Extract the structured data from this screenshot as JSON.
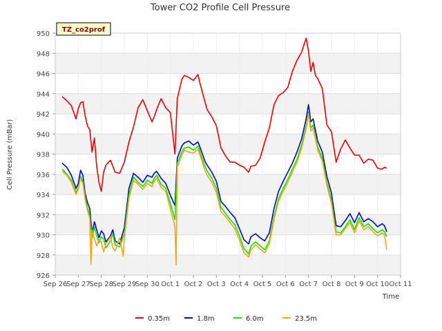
{
  "chart_data": {
    "type": "line",
    "title": "Tower CO2 Profile Cell Pressure",
    "xlabel": "Time",
    "ylabel": "Cell Pressure (mBar)",
    "badge": "TZ_co2prof",
    "ylim": [
      926,
      950
    ],
    "yticks": [
      926,
      928,
      930,
      932,
      934,
      936,
      938,
      940,
      942,
      944,
      946,
      948,
      950
    ],
    "xlim": [
      0,
      15
    ],
    "xticks": [
      "Sep 26",
      "Sep 27",
      "Sep 28",
      "Sep 29",
      "Sep 30",
      "Oct 1",
      "Oct 2",
      "Oct 3",
      "Oct 4",
      "Oct 5",
      "Oct 6",
      "Oct 7",
      "Oct 8",
      "Oct 9",
      "Oct 10",
      "Oct 11"
    ],
    "grid": true,
    "legend_position": "bottom",
    "series": [
      {
        "name": "0.35m",
        "color": "#ee0000",
        "x": [
          0.3,
          0.5,
          0.7,
          0.9,
          1.0,
          1.1,
          1.2,
          1.3,
          1.4,
          1.5,
          1.6,
          1.7,
          1.8,
          1.9,
          2.0,
          2.1,
          2.2,
          2.4,
          2.5,
          2.6,
          2.8,
          3.0,
          3.2,
          3.4,
          3.6,
          3.8,
          4.0,
          4.2,
          4.3,
          4.4,
          4.6,
          4.8,
          5.0,
          5.2,
          5.3,
          5.5,
          5.6,
          5.8,
          6.0,
          6.2,
          6.3,
          6.5,
          6.6,
          6.8,
          7.0,
          7.2,
          7.4,
          7.6,
          7.8,
          8.0,
          8.2,
          8.4,
          8.5,
          8.7,
          8.9,
          9.1,
          9.3,
          9.5,
          9.7,
          9.9,
          10.1,
          10.3,
          10.5,
          10.7,
          10.9,
          11.0,
          11.1,
          11.2,
          11.3,
          11.4,
          11.6,
          11.8,
          12.0,
          12.2,
          12.4,
          12.6,
          12.8,
          13.0,
          13.2,
          13.4,
          13.6,
          13.8,
          14.0,
          14.2,
          14.3,
          14.4
        ],
        "y": [
          943.7,
          943.3,
          942.8,
          941.5,
          942.5,
          943.1,
          943.2,
          941.8,
          940.8,
          940.4,
          938.2,
          939.6,
          936.8,
          935.2,
          934.3,
          936.2,
          936.9,
          937.4,
          936.8,
          936.2,
          936.1,
          937.2,
          939.2,
          940.7,
          942.6,
          943.4,
          942.3,
          941.2,
          941.7,
          942.4,
          943.5,
          942.6,
          942.1,
          938.0,
          943.5,
          945.4,
          945.8,
          945.6,
          945.3,
          945.9,
          944.9,
          943.2,
          942.4,
          941.7,
          940.8,
          938.6,
          937.8,
          937.2,
          937.2,
          936.9,
          936.7,
          936.2,
          936.8,
          936.9,
          937.6,
          939.2,
          940.6,
          942.9,
          943.8,
          944.1,
          944.6,
          946.2,
          947.3,
          948.1,
          949.5,
          948.2,
          946.2,
          947.1,
          945.8,
          945.5,
          944.5,
          940.9,
          940.2,
          937.2,
          938.5,
          939.4,
          938.6,
          937.9,
          937.9,
          937.1,
          937.5,
          937.4,
          936.6,
          936.5,
          936.7,
          936.6
        ]
      },
      {
        "name": "1.8m",
        "color": "#0000dd",
        "x": [
          0.3,
          0.5,
          0.7,
          0.9,
          1.0,
          1.1,
          1.2,
          1.3,
          1.4,
          1.5,
          1.6,
          1.7,
          1.8,
          1.9,
          2.0,
          2.1,
          2.2,
          2.4,
          2.5,
          2.6,
          2.8,
          3.0,
          3.2,
          3.4,
          3.6,
          3.8,
          4.0,
          4.2,
          4.3,
          4.4,
          4.6,
          4.8,
          5.0,
          5.2,
          5.3,
          5.5,
          5.6,
          5.8,
          6.0,
          6.2,
          6.3,
          6.5,
          6.6,
          6.8,
          7.0,
          7.2,
          7.4,
          7.6,
          7.8,
          8.0,
          8.2,
          8.4,
          8.5,
          8.7,
          8.9,
          9.1,
          9.3,
          9.5,
          9.7,
          9.9,
          10.1,
          10.3,
          10.5,
          10.7,
          10.9,
          11.0,
          11.1,
          11.2,
          11.3,
          11.4,
          11.6,
          11.8,
          12.0,
          12.2,
          12.4,
          12.6,
          12.8,
          13.0,
          13.2,
          13.4,
          13.6,
          13.8,
          14.0,
          14.2,
          14.3,
          14.4
        ],
        "y": [
          937.1,
          936.7,
          935.9,
          934.6,
          935.1,
          936.4,
          935.9,
          934.1,
          933.2,
          932.6,
          930.1,
          931.3,
          930.5,
          929.7,
          930.4,
          930.1,
          929.3,
          929.9,
          930.5,
          929.4,
          929.1,
          930.7,
          934.6,
          936.1,
          935.7,
          935.2,
          935.9,
          935.7,
          936.1,
          936.3,
          935.6,
          935.1,
          933.9,
          932.9,
          937.6,
          938.8,
          939.1,
          939.3,
          938.9,
          939.2,
          938.6,
          937.3,
          936.9,
          936.2,
          935.3,
          933.3,
          932.8,
          932.2,
          931.7,
          930.6,
          929.5,
          929.1,
          929.8,
          930.1,
          929.7,
          929.4,
          930.2,
          932.6,
          934.3,
          935.3,
          936.2,
          937.1,
          938.2,
          939.5,
          941.5,
          942.9,
          941.2,
          941.5,
          940.4,
          939.3,
          938.2,
          935.8,
          934.1,
          930.9,
          930.8,
          931.4,
          932.1,
          931.2,
          932.2,
          931.3,
          931.6,
          931.3,
          930.8,
          931.1,
          930.9,
          930.3
        ]
      },
      {
        "name": "6.0m",
        "color": "#00ee00",
        "x": [
          0.3,
          0.5,
          0.7,
          0.9,
          1.0,
          1.1,
          1.2,
          1.3,
          1.4,
          1.5,
          1.6,
          1.7,
          1.8,
          1.9,
          2.0,
          2.1,
          2.2,
          2.4,
          2.5,
          2.6,
          2.8,
          3.0,
          3.2,
          3.4,
          3.6,
          3.8,
          4.0,
          4.2,
          4.3,
          4.4,
          4.6,
          4.8,
          5.0,
          5.2,
          5.3,
          5.5,
          5.6,
          5.8,
          6.0,
          6.2,
          6.3,
          6.5,
          6.6,
          6.8,
          7.0,
          7.2,
          7.4,
          7.6,
          7.8,
          8.0,
          8.2,
          8.4,
          8.5,
          8.7,
          8.9,
          9.1,
          9.3,
          9.5,
          9.7,
          9.9,
          10.1,
          10.3,
          10.5,
          10.7,
          10.9,
          11.0,
          11.1,
          11.2,
          11.3,
          11.4,
          11.6,
          11.8,
          12.0,
          12.2,
          12.4,
          12.6,
          12.8,
          13.0,
          13.2,
          13.4,
          13.6,
          13.8,
          14.0,
          14.2,
          14.3,
          14.4
        ],
        "y": [
          936.5,
          936.0,
          935.4,
          934.2,
          934.7,
          935.8,
          935.3,
          933.8,
          932.7,
          931.9,
          929.6,
          930.8,
          929.9,
          929.2,
          929.8,
          929.6,
          928.7,
          929.4,
          930.1,
          929.0,
          928.8,
          930.1,
          934.0,
          935.7,
          935.2,
          934.8,
          935.4,
          935.1,
          935.6,
          935.9,
          935.0,
          934.6,
          933.1,
          931.5,
          937.1,
          938.2,
          938.6,
          938.7,
          938.4,
          938.8,
          938.1,
          936.8,
          936.3,
          935.6,
          934.6,
          932.7,
          932.1,
          931.5,
          931.0,
          929.9,
          928.6,
          928.1,
          928.9,
          929.3,
          928.9,
          928.5,
          929.4,
          931.8,
          933.6,
          934.6,
          935.5,
          936.5,
          937.5,
          938.9,
          940.8,
          942.2,
          940.6,
          940.9,
          939.8,
          938.7,
          937.6,
          935.2,
          933.4,
          930.3,
          930.2,
          930.8,
          931.5,
          930.5,
          931.7,
          930.8,
          931.1,
          930.6,
          930.2,
          930.5,
          930.3,
          929.8
        ]
      },
      {
        "name": "23.5m",
        "color": "#ffa500",
        "x": [
          0.3,
          0.5,
          0.7,
          0.9,
          1.0,
          1.1,
          1.2,
          1.3,
          1.4,
          1.5,
          1.55,
          1.6,
          1.7,
          1.8,
          1.9,
          2.0,
          2.1,
          2.2,
          2.4,
          2.5,
          2.6,
          2.8,
          2.95,
          3.0,
          3.2,
          3.4,
          3.6,
          3.8,
          4.0,
          4.2,
          4.3,
          4.4,
          4.6,
          4.8,
          5.0,
          5.2,
          5.25,
          5.3,
          5.5,
          5.6,
          5.8,
          6.0,
          6.2,
          6.3,
          6.5,
          6.6,
          6.8,
          7.0,
          7.2,
          7.4,
          7.6,
          7.8,
          8.0,
          8.2,
          8.4,
          8.5,
          8.7,
          8.9,
          9.1,
          9.3,
          9.5,
          9.7,
          9.9,
          10.1,
          10.3,
          10.5,
          10.7,
          10.9,
          11.0,
          11.1,
          11.2,
          11.3,
          11.4,
          11.6,
          11.8,
          12.0,
          12.2,
          12.4,
          12.6,
          12.8,
          13.0,
          13.2,
          13.4,
          13.6,
          13.8,
          14.0,
          14.2,
          14.3,
          14.4
        ],
        "y": [
          936.3,
          935.9,
          935.2,
          934.0,
          934.5,
          935.6,
          935.1,
          933.5,
          932.4,
          931.6,
          927.1,
          930.5,
          929.6,
          928.9,
          929.5,
          929.3,
          928.3,
          929.1,
          929.8,
          928.7,
          928.4,
          929.7,
          927.9,
          929.6,
          933.6,
          935.4,
          935.0,
          934.5,
          935.1,
          934.8,
          935.3,
          935.6,
          934.7,
          934.3,
          932.6,
          930.8,
          927.0,
          936.7,
          937.9,
          938.4,
          938.2,
          938.1,
          938.5,
          937.8,
          936.4,
          935.9,
          935.2,
          934.2,
          932.3,
          931.8,
          931.2,
          930.6,
          929.5,
          928.2,
          927.8,
          928.5,
          929.0,
          928.6,
          928.2,
          929.1,
          931.5,
          933.3,
          934.3,
          935.2,
          936.2,
          937.2,
          938.6,
          940.5,
          942.0,
          940.3,
          940.6,
          939.5,
          938.4,
          937.3,
          934.9,
          933.1,
          930.0,
          930.0,
          930.6,
          931.2,
          930.2,
          931.4,
          930.5,
          930.8,
          930.3,
          929.9,
          930.2,
          930.0,
          928.5
        ]
      }
    ]
  }
}
